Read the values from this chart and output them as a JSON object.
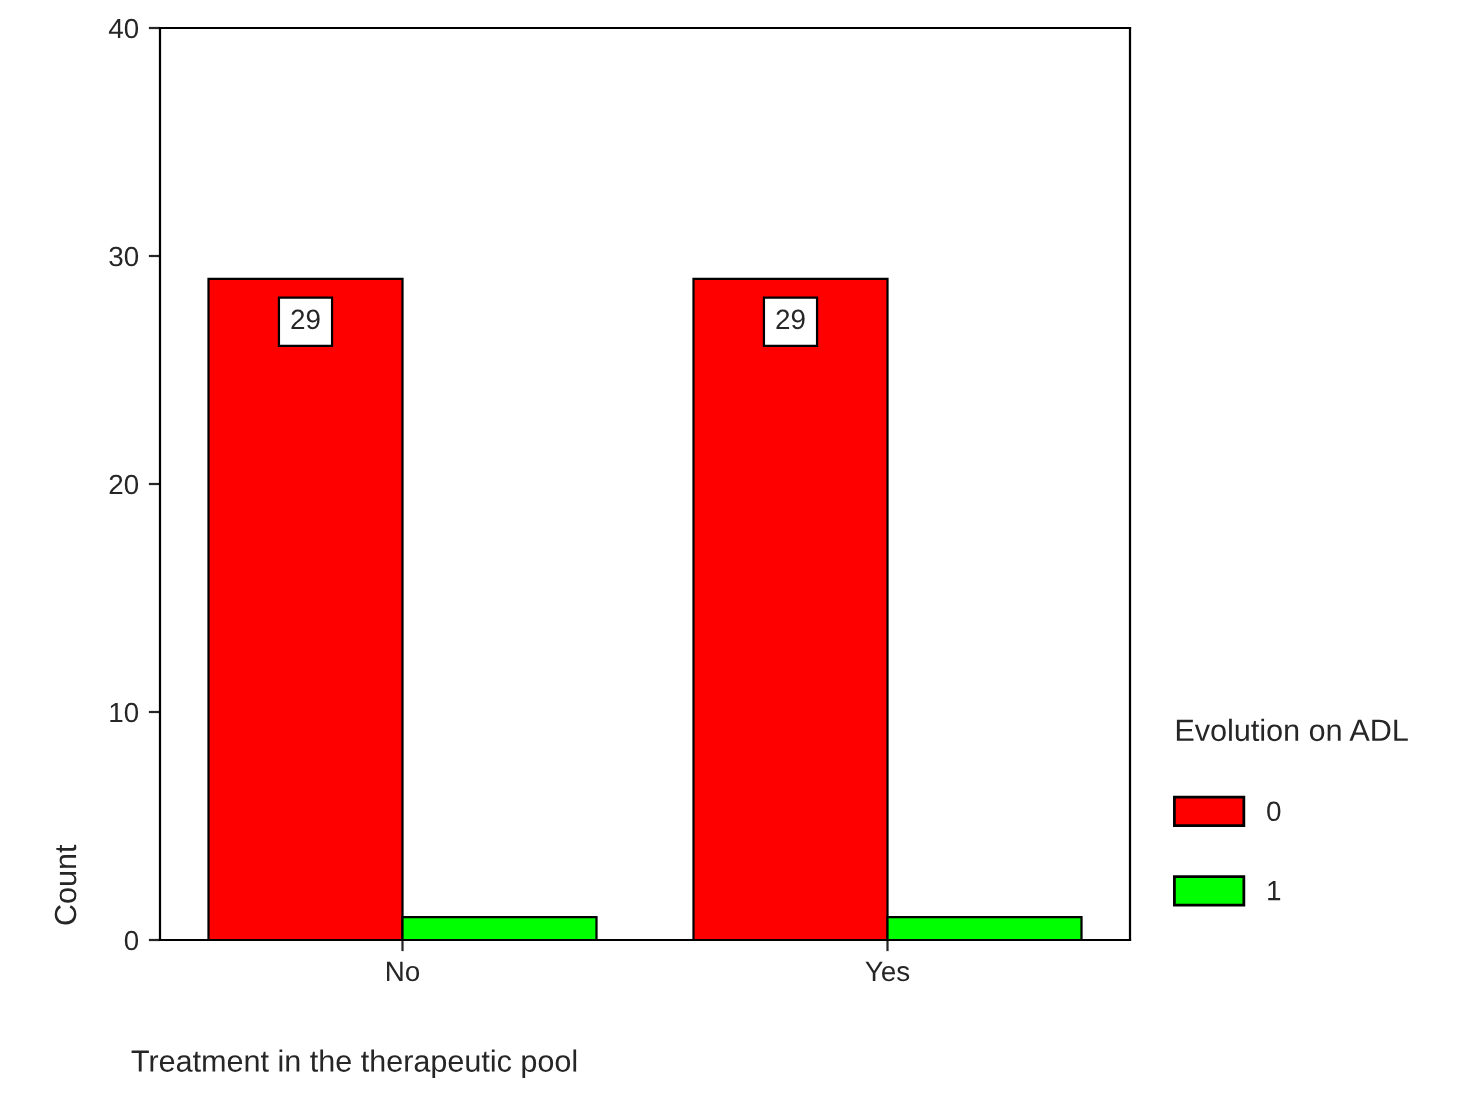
{
  "chart_data": {
    "type": "bar",
    "xlabel": "Treatment in the therapeutic pool",
    "ylabel": "Count",
    "legend_title": "Evolution on ADL",
    "categories": [
      "No",
      "Yes"
    ],
    "series": [
      {
        "name": "0",
        "color": "#ff0000",
        "values": [
          29,
          29
        ],
        "value_labels": [
          "29",
          "29"
        ]
      },
      {
        "name": "1",
        "color": "#00ff00",
        "values": [
          1,
          1
        ],
        "value_labels": [
          null,
          null
        ]
      }
    ],
    "ylim": [
      0,
      40
    ],
    "yticks": [
      0,
      10,
      20,
      30,
      40
    ],
    "grid": false,
    "legend": "right"
  }
}
